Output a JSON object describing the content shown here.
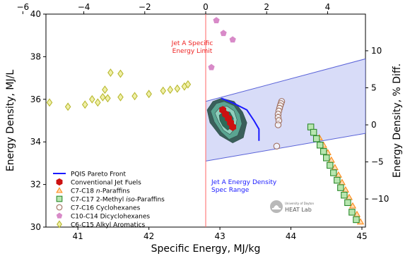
{
  "chart_data": {
    "type": "scatter",
    "xlabel": "Specific Energy, MJ/kg",
    "ylabel": "Energy Density, MJ/L",
    "y2label": "Energy Density, % Diff.",
    "xlim": [
      40.55,
      45.05
    ],
    "ylim": [
      30,
      40
    ],
    "x_ticks": [
      41,
      42,
      43,
      44,
      45
    ],
    "y_ticks": [
      30,
      32,
      34,
      36,
      38,
      40
    ],
    "top_ticks": [
      -6,
      -4,
      -2,
      0,
      2,
      4
    ],
    "top_axis_ref_x": 42.8,
    "top_axis_scale_pct_per_mj": 2.33,
    "right_ticks": [
      -10,
      -5,
      0,
      5,
      10
    ],
    "right_axis_ref_y": 34.8,
    "right_axis_scale_pct_per_mj": 2.874,
    "grid": false,
    "legend_position": "bottom-left",
    "annotations": {
      "specific_limit": [
        "Jet A Specific",
        "Energy Limit"
      ],
      "density_range": [
        "Jet A Energy Density",
        "Spec Range"
      ],
      "logo_top": "University of Dayton",
      "logo_main": "HEAT Lab"
    },
    "colors": {
      "pareto": "#1a1aff",
      "limit_line": "#ff6666",
      "limit_text": "#ee2222",
      "band_fill": "#d4d8f7",
      "band_edge": "#5a63d8"
    },
    "jet_a_specific_limit": 42.8,
    "jet_a_density_band": {
      "lower": [
        [
          42.8,
          33.1
        ],
        [
          45.05,
          34.4
        ]
      ],
      "upper": [
        [
          42.8,
          35.9
        ],
        [
          45.05,
          37.9
        ]
      ]
    },
    "contour_levels": [
      {
        "color": "#3a5f5a",
        "points": [
          [
            42.82,
            35.5
          ],
          [
            42.9,
            35.9
          ],
          [
            43.02,
            36.05
          ],
          [
            43.2,
            35.9
          ],
          [
            43.32,
            35.4
          ],
          [
            43.38,
            34.9
          ],
          [
            43.33,
            34.2
          ],
          [
            43.18,
            33.95
          ],
          [
            43.0,
            34.3
          ],
          [
            42.86,
            34.9
          ]
        ]
      },
      {
        "color": "#5aa591",
        "points": [
          [
            42.87,
            35.45
          ],
          [
            42.95,
            35.8
          ],
          [
            43.06,
            35.9
          ],
          [
            43.2,
            35.7
          ],
          [
            43.28,
            35.3
          ],
          [
            43.31,
            34.85
          ],
          [
            43.25,
            34.3
          ],
          [
            43.13,
            34.12
          ],
          [
            43.02,
            34.45
          ],
          [
            42.92,
            34.95
          ]
        ]
      },
      {
        "color": "#8fd0bd",
        "points": [
          [
            42.93,
            35.35
          ],
          [
            43.0,
            35.62
          ],
          [
            43.1,
            35.68
          ],
          [
            43.2,
            35.45
          ],
          [
            43.24,
            35.05
          ],
          [
            43.22,
            34.65
          ],
          [
            43.14,
            34.35
          ],
          [
            43.05,
            34.55
          ],
          [
            42.98,
            34.95
          ]
        ]
      },
      {
        "color": "#2e6b58",
        "points": [
          [
            42.99,
            35.25
          ],
          [
            43.06,
            35.45
          ],
          [
            43.14,
            35.4
          ],
          [
            43.19,
            35.1
          ],
          [
            43.18,
            34.75
          ],
          [
            43.11,
            34.55
          ],
          [
            43.04,
            34.75
          ],
          [
            43.0,
            35.0
          ]
        ]
      }
    ],
    "series": [
      {
        "name": "PQIS Pareto Front",
        "type": "line",
        "color": "#1a1aff",
        "points": [
          [
            43.02,
            36.05
          ],
          [
            43.2,
            35.8
          ],
          [
            43.38,
            35.5
          ],
          [
            43.48,
            35.0
          ],
          [
            43.55,
            34.6
          ],
          [
            43.55,
            34.05
          ]
        ]
      },
      {
        "name": "Conventional Jet Fuels",
        "marker": "hexagon",
        "color": "#cc1111",
        "points": [
          [
            43.04,
            35.5
          ],
          [
            43.08,
            35.3
          ],
          [
            43.12,
            35.1
          ],
          [
            43.15,
            34.9
          ],
          [
            43.18,
            34.7
          ]
        ]
      },
      {
        "name": "C7-C18 n-Paraffins",
        "marker": "triangle",
        "color": "#ff8c1a",
        "points": [
          [
            44.4,
            34.2
          ],
          [
            44.46,
            33.85
          ],
          [
            44.52,
            33.5
          ],
          [
            44.57,
            33.15
          ],
          [
            44.62,
            32.8
          ],
          [
            44.67,
            32.45
          ],
          [
            44.72,
            32.1
          ],
          [
            44.77,
            31.75
          ],
          [
            44.82,
            31.4
          ],
          [
            44.87,
            31.0
          ],
          [
            44.93,
            30.6
          ],
          [
            44.98,
            30.25
          ]
        ]
      },
      {
        "name": "C7-C17 2-Methyl iso-Paraffins",
        "marker": "square",
        "color": "#33aa33",
        "points": [
          [
            44.28,
            34.7
          ],
          [
            44.32,
            34.45
          ],
          [
            44.36,
            34.15
          ],
          [
            44.41,
            33.85
          ],
          [
            44.46,
            33.55
          ],
          [
            44.5,
            33.25
          ],
          [
            44.55,
            32.9
          ],
          [
            44.6,
            32.55
          ],
          [
            44.65,
            32.2
          ],
          [
            44.7,
            31.85
          ],
          [
            44.75,
            31.5
          ],
          [
            44.8,
            31.15
          ],
          [
            44.86,
            30.7
          ],
          [
            44.92,
            30.35
          ]
        ]
      },
      {
        "name": "C7-C16 Cyclohexanes",
        "marker": "circle",
        "color": "#a07060",
        "points": [
          [
            43.87,
            35.9
          ],
          [
            43.86,
            35.8
          ],
          [
            43.85,
            35.7
          ],
          [
            43.84,
            35.58
          ],
          [
            43.83,
            35.45
          ],
          [
            43.82,
            35.3
          ],
          [
            43.82,
            35.15
          ],
          [
            43.83,
            35.0
          ],
          [
            43.82,
            34.8
          ],
          [
            43.8,
            33.8
          ]
        ]
      },
      {
        "name": "C10-C14 Dicyclohexanes",
        "marker": "pentagon",
        "color": "#d88ac8",
        "points": [
          [
            42.95,
            39.7
          ],
          [
            43.05,
            39.1
          ],
          [
            43.18,
            38.8
          ],
          [
            42.88,
            37.5
          ]
        ]
      },
      {
        "name": "C6-C15 Alkyl Aromatics",
        "marker": "diamond",
        "color": "#b8b830",
        "points": [
          [
            40.6,
            35.85
          ],
          [
            40.86,
            35.65
          ],
          [
            41.1,
            35.75
          ],
          [
            41.2,
            36.0
          ],
          [
            41.28,
            35.85
          ],
          [
            41.35,
            36.1
          ],
          [
            41.38,
            36.45
          ],
          [
            41.46,
            37.25
          ],
          [
            41.42,
            36.05
          ],
          [
            41.6,
            37.2
          ],
          [
            41.6,
            36.1
          ],
          [
            41.8,
            36.15
          ],
          [
            42.0,
            36.25
          ],
          [
            42.2,
            36.4
          ],
          [
            42.3,
            36.45
          ],
          [
            42.4,
            36.5
          ],
          [
            42.5,
            36.6
          ],
          [
            42.55,
            36.7
          ]
        ]
      }
    ]
  }
}
